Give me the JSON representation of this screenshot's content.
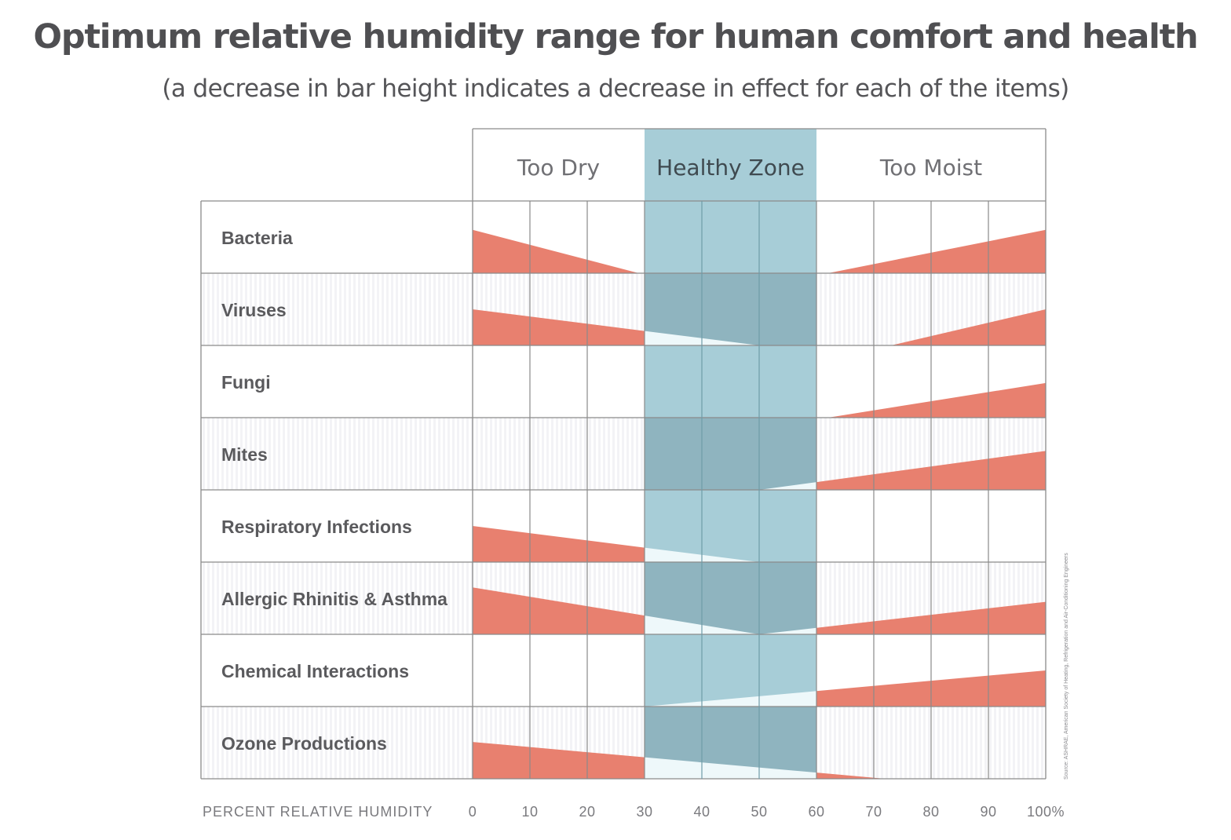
{
  "chart_data": {
    "type": "area",
    "title": "Optimum relative humidity range for human comfort and health",
    "subtitle": "(a decrease in bar height indicates a decrease in effect for each of the items)",
    "xlabel": "PERCENT RELATIVE HUMIDITY",
    "xlim": [
      0,
      100
    ],
    "x_ticks": [
      "0",
      "10",
      "20",
      "30",
      "40",
      "50",
      "60",
      "70",
      "80",
      "90",
      "100%"
    ],
    "y_meaning": "relative effect (bar height, fraction of row)",
    "zones": [
      {
        "label": "Too Dry",
        "from": 0,
        "to": 30
      },
      {
        "label": "Healthy Zone",
        "from": 30,
        "to": 60
      },
      {
        "label": "Too Moist",
        "from": 60,
        "to": 100
      }
    ],
    "categories": [
      "Bacteria",
      "Viruses",
      "Fungi",
      "Mites",
      "Respiratory Infections",
      "Allergic Rhinitis & Asthma",
      "Chemical Interactions",
      "Ozone Productions"
    ],
    "series": [
      {
        "name": "Bacteria",
        "segments": [
          {
            "x": [
              0,
              29
            ],
            "y": [
              0.6,
              0
            ]
          },
          {
            "x": [
              62,
              100
            ],
            "y": [
              0,
              0.6
            ]
          }
        ]
      },
      {
        "name": "Viruses",
        "segments": [
          {
            "x": [
              0,
              50
            ],
            "y": [
              0.5,
              0
            ]
          },
          {
            "x": [
              73,
              100
            ],
            "y": [
              0,
              0.5
            ]
          }
        ]
      },
      {
        "name": "Fungi",
        "segments": [
          {
            "x": [
              62,
              100
            ],
            "y": [
              0,
              0.48
            ]
          }
        ]
      },
      {
        "name": "Mites",
        "segments": [
          {
            "x": [
              50,
              100
            ],
            "y": [
              0,
              0.54
            ]
          }
        ]
      },
      {
        "name": "Respiratory Infections",
        "segments": [
          {
            "x": [
              0,
              50
            ],
            "y": [
              0.5,
              0
            ]
          }
        ]
      },
      {
        "name": "Allergic Rhinitis & Asthma",
        "segments": [
          {
            "x": [
              0,
              50
            ],
            "y": [
              0.65,
              0
            ]
          },
          {
            "x": [
              50,
              100
            ],
            "y": [
              0,
              0.45
            ]
          }
        ]
      },
      {
        "name": "Chemical Interactions",
        "segments": [
          {
            "x": [
              30,
              100
            ],
            "y": [
              0,
              0.5
            ]
          }
        ]
      },
      {
        "name": "Ozone Productions",
        "segments": [
          {
            "x": [
              0,
              72
            ],
            "y": [
              0.51,
              0
            ]
          }
        ]
      }
    ],
    "source": "Source: ASHRAE, American Society of Heating, Refrigeration and Air-Conditioning Engineers",
    "grid": true
  },
  "colors": {
    "wedge": "#e8806f",
    "wedge_in_zone": "#eef8fa",
    "healthy_zone": "#a7cdd7",
    "healthy_zone_alt": "#8fb4bf",
    "grid": "#8a8a8a",
    "row_alt": "#f3f3f6"
  }
}
